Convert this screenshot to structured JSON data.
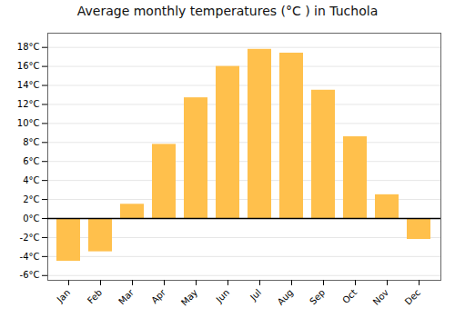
{
  "chart_data": {
    "type": "bar",
    "title": "Average monthly temperatures (°C ) in Tuchola",
    "categories": [
      "Jan",
      "Feb",
      "Mar",
      "Apr",
      "May",
      "Jun",
      "Jul",
      "Aug",
      "Sep",
      "Oct",
      "Nov",
      "Dec"
    ],
    "values": [
      -4.5,
      -3.5,
      1.5,
      7.8,
      12.7,
      16.0,
      17.8,
      17.4,
      13.5,
      8.6,
      2.5,
      -2.2
    ],
    "color": "#FFC04C",
    "ylim": [
      -6.5,
      19.5
    ],
    "yticks": [
      {
        "value": -6,
        "label": "-6°C"
      },
      {
        "value": -4,
        "label": "-4°C"
      },
      {
        "value": -2,
        "label": "-2°C"
      },
      {
        "value": 0,
        "label": "0°C"
      },
      {
        "value": 2,
        "label": "2°C"
      },
      {
        "value": 4,
        "label": "4°C"
      },
      {
        "value": 6,
        "label": "6°C"
      },
      {
        "value": 8,
        "label": "8°C"
      },
      {
        "value": 10,
        "label": "10°C"
      },
      {
        "value": 12,
        "label": "12°C"
      },
      {
        "value": 14,
        "label": "14°C"
      },
      {
        "value": 16,
        "label": "16°C"
      },
      {
        "value": 18,
        "label": "18°C"
      }
    ],
    "grid": true
  }
}
